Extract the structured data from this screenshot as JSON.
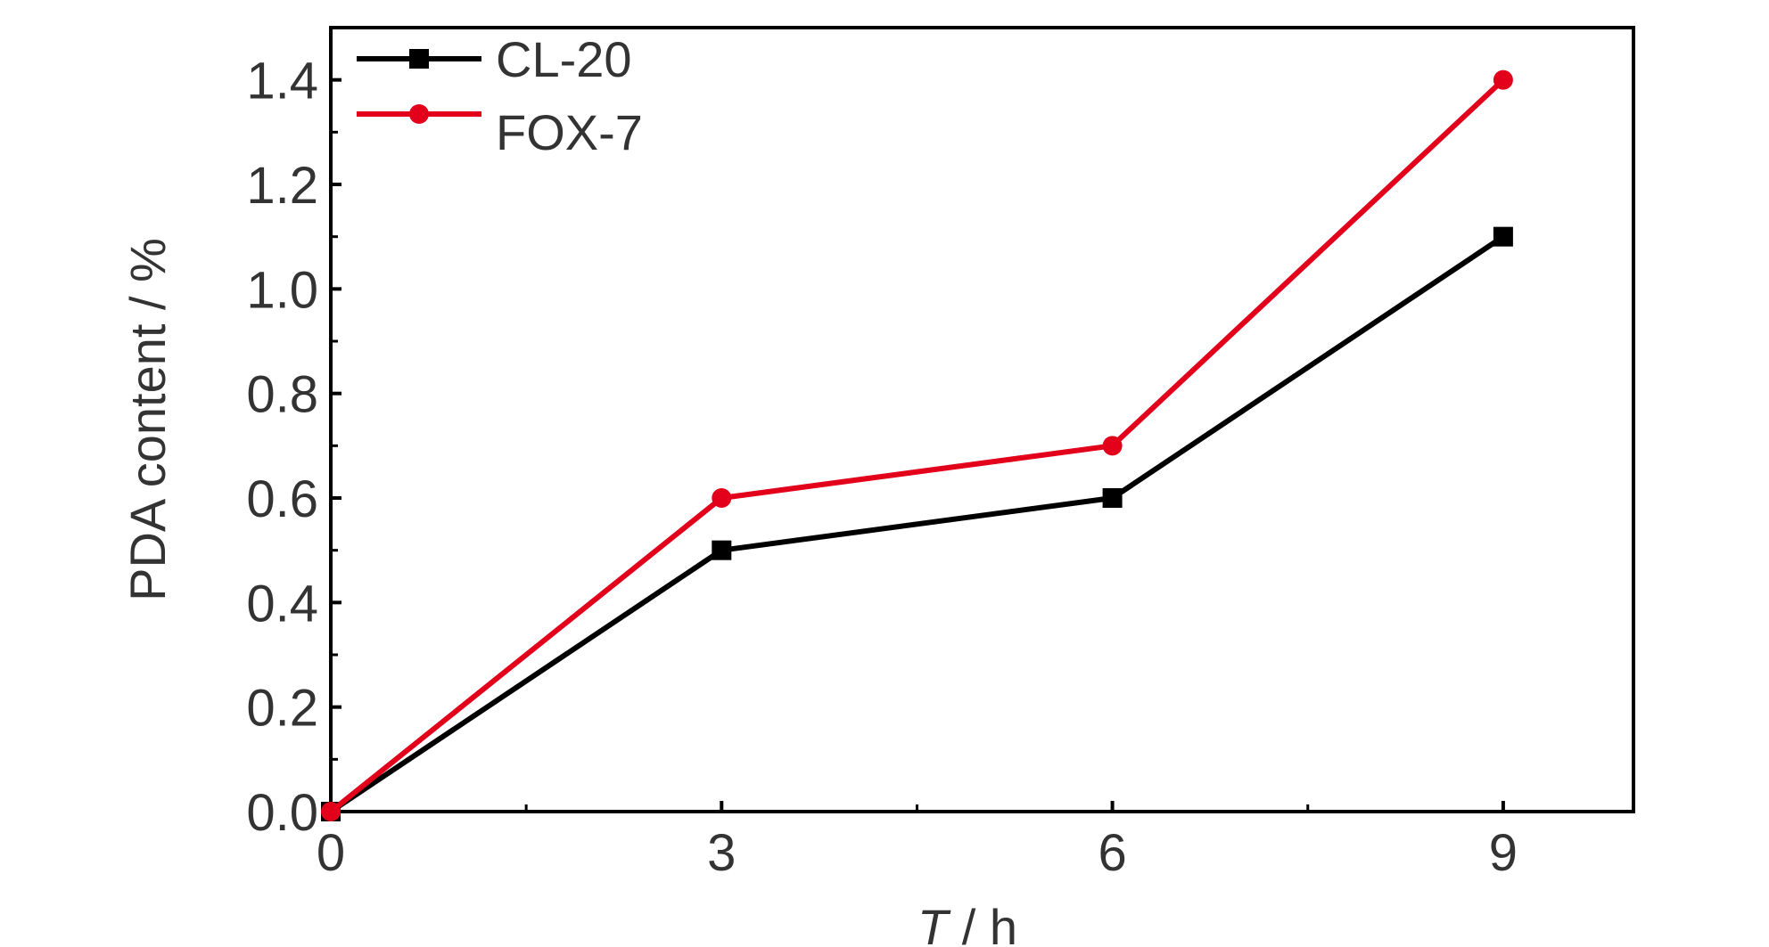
{
  "chart_data": {
    "type": "line",
    "title": "",
    "xlabel": {
      "italic": "T",
      "rest": " / h"
    },
    "ylabel": "PDA content / %",
    "x": [
      0,
      3,
      6,
      9
    ],
    "xticks": [
      "0",
      "3",
      "6",
      "9"
    ],
    "yticks": [
      "0.0",
      "0.2",
      "0.4",
      "0.6",
      "0.8",
      "1.0",
      "1.2",
      "1.4"
    ],
    "xlim": [
      0,
      10
    ],
    "ylim": [
      0,
      1.5
    ],
    "grid": false,
    "legend_position": "top-left",
    "series": [
      {
        "name": "CL-20",
        "values": [
          0.0,
          0.5,
          0.6,
          1.1
        ],
        "color": "#000000",
        "marker": "square"
      },
      {
        "name": "FOX-7",
        "values": [
          0.0,
          0.6,
          0.7,
          1.4
        ],
        "color": "#e3001b",
        "marker": "circle"
      }
    ]
  }
}
